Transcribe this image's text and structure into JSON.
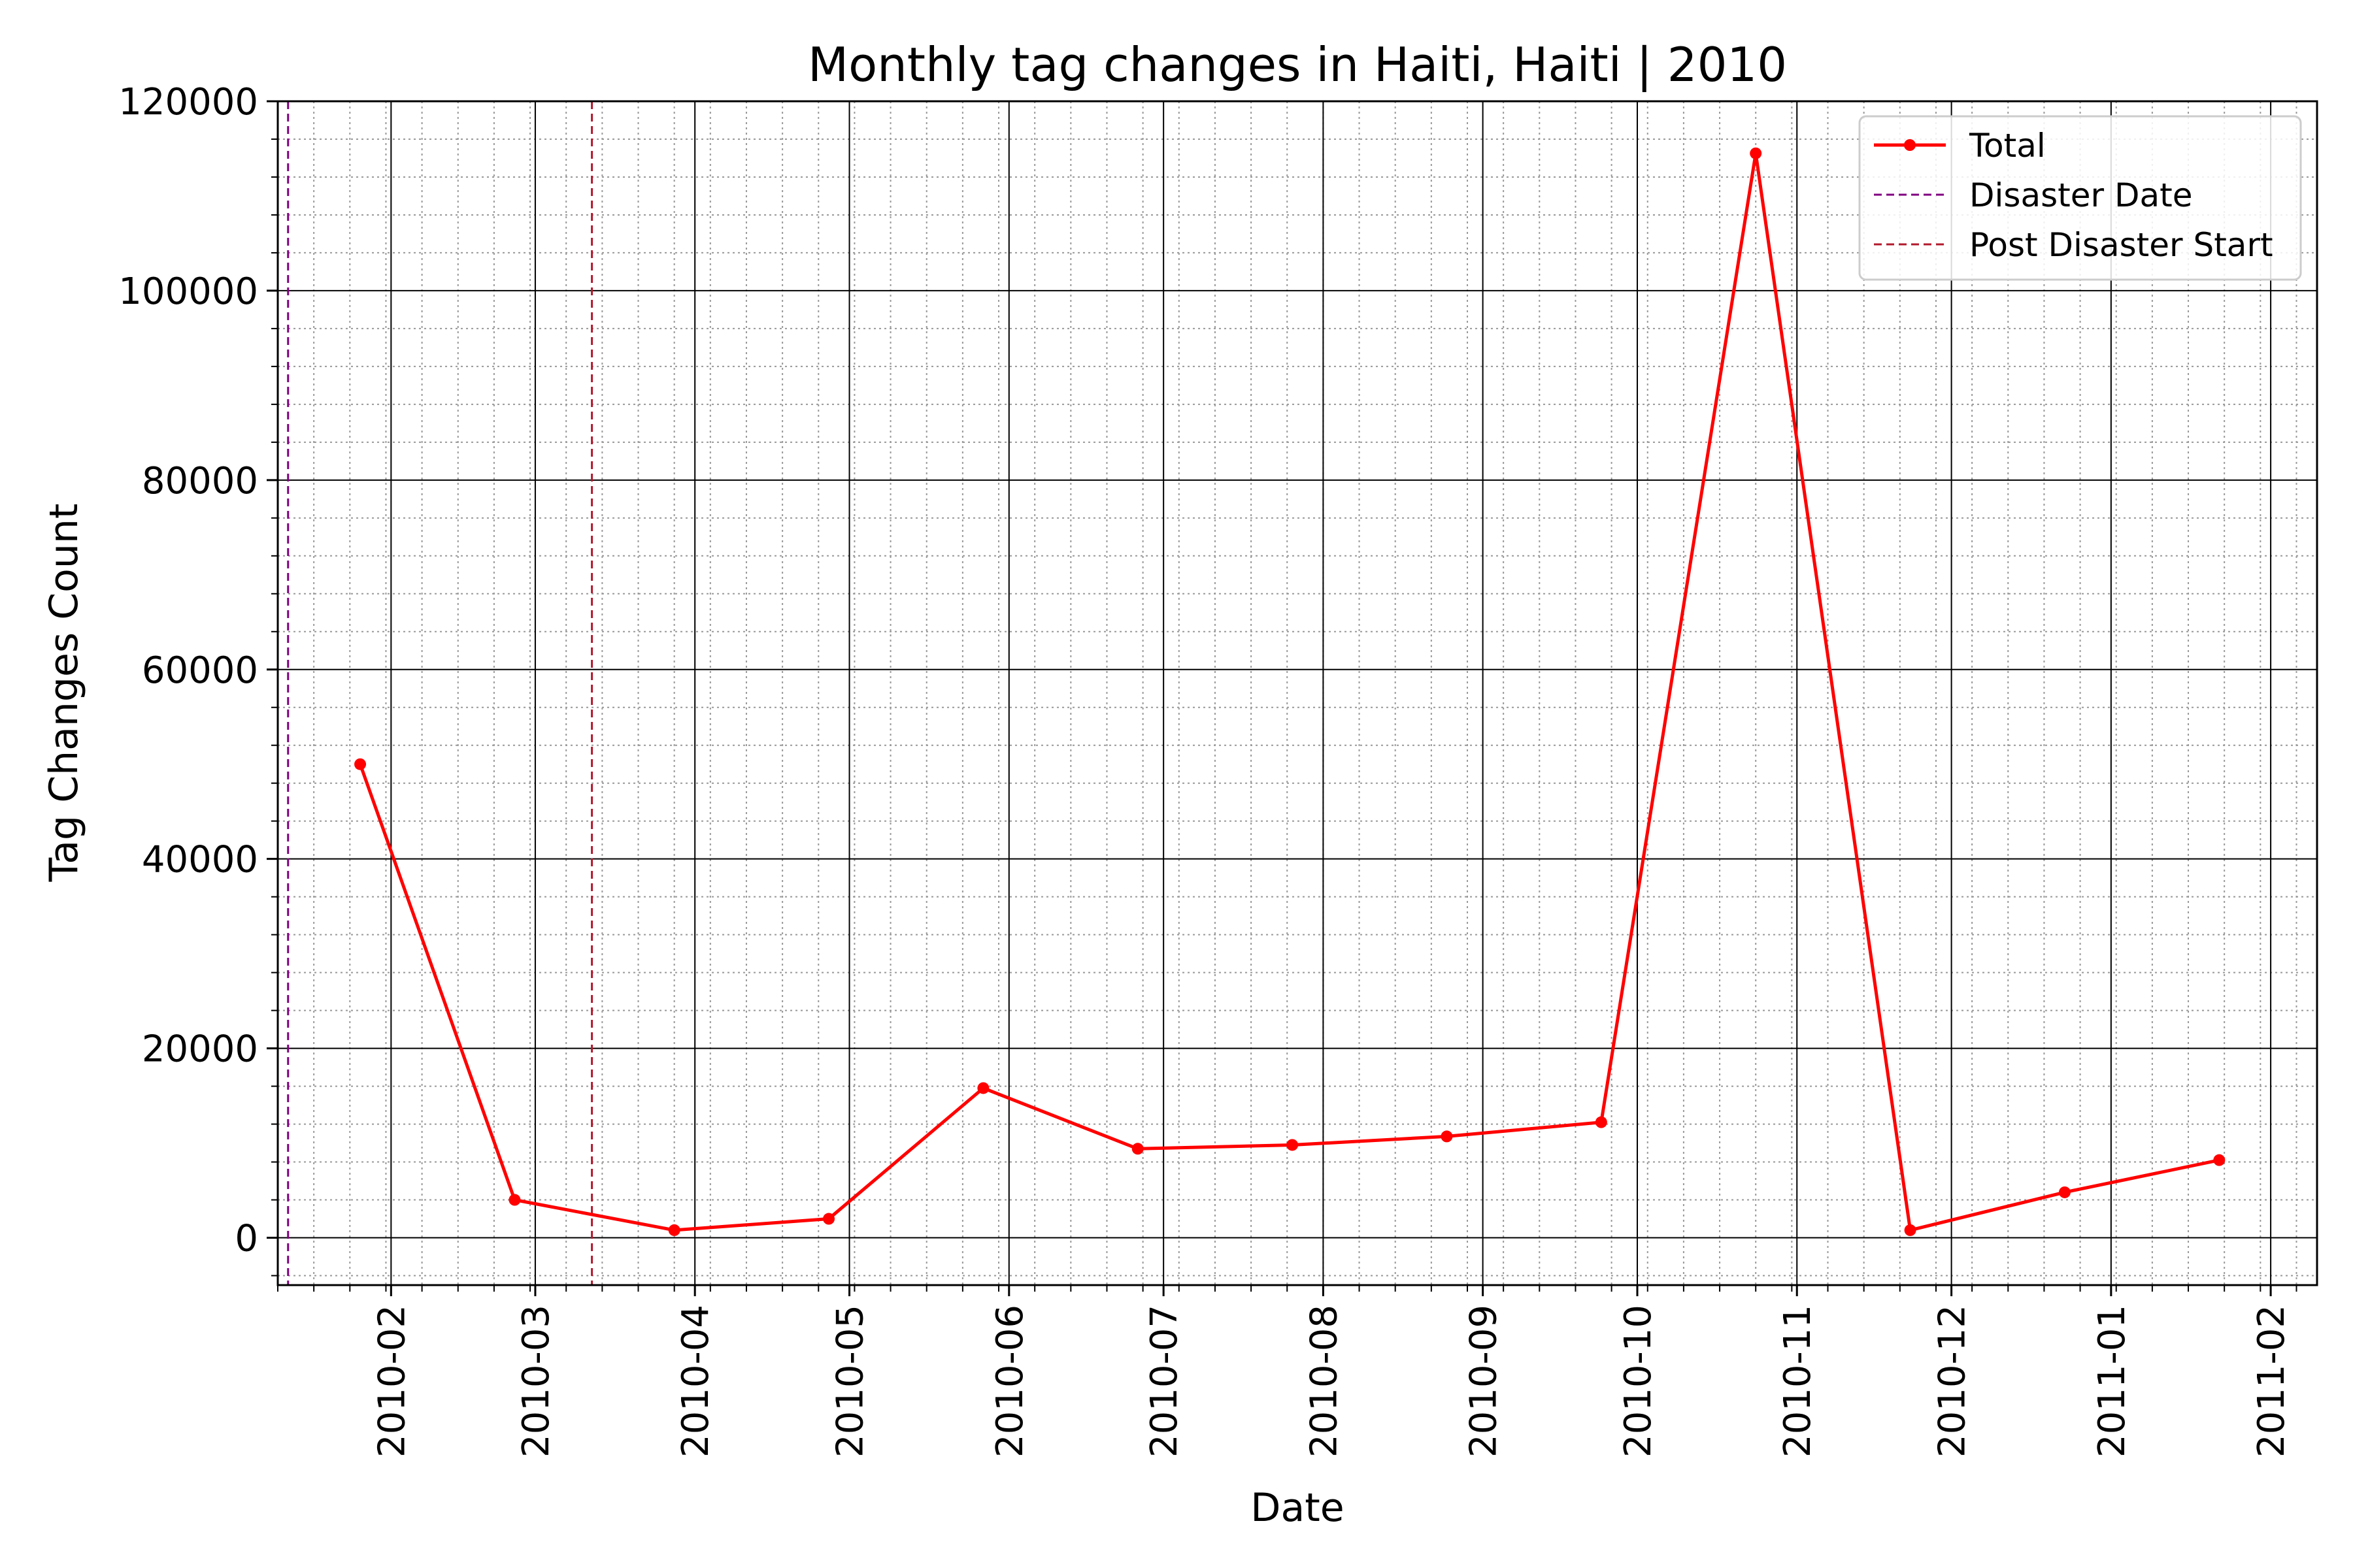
{
  "chart_data": {
    "type": "line",
    "title": "Monthly tag changes in Haiti, Haiti | 2010",
    "xlabel": "Date",
    "ylabel": "Tag Changes Count",
    "x_tick_labels": [
      "2010-02",
      "2010-03",
      "2010-04",
      "2010-05",
      "2010-06",
      "2010-07",
      "2010-08",
      "2010-09",
      "2010-10",
      "2010-11",
      "2010-12",
      "2011-01",
      "2011-02"
    ],
    "y_tick_labels": [
      "0",
      "20000",
      "40000",
      "60000",
      "80000",
      "100000",
      "120000"
    ],
    "xlim": [
      "2010-01-10",
      "2011-02-10"
    ],
    "ylim": [
      -5000,
      120000
    ],
    "grid": true,
    "minor_grid": true,
    "legend_position": "top-right",
    "series": [
      {
        "name": "Total",
        "color": "#ff0000",
        "marker": "circle",
        "x": [
          "2010-01-26",
          "2010-02-25",
          "2010-03-28",
          "2010-04-27",
          "2010-05-27",
          "2010-06-26",
          "2010-07-26",
          "2010-08-25",
          "2010-09-24",
          "2010-10-24",
          "2010-11-23",
          "2010-12-23",
          "2011-01-22"
        ],
        "y": [
          50000,
          4000,
          800,
          2000,
          15800,
          9400,
          9800,
          10700,
          12200,
          114500,
          800,
          4800,
          8200
        ]
      }
    ],
    "vlines": [
      {
        "name": "Disaster Date",
        "x": "2010-01-12",
        "color": "#800080",
        "style": "dashed"
      },
      {
        "name": "Post Disaster Start",
        "x": "2010-03-12",
        "color": "#b2182b",
        "style": "dashed"
      }
    ]
  }
}
